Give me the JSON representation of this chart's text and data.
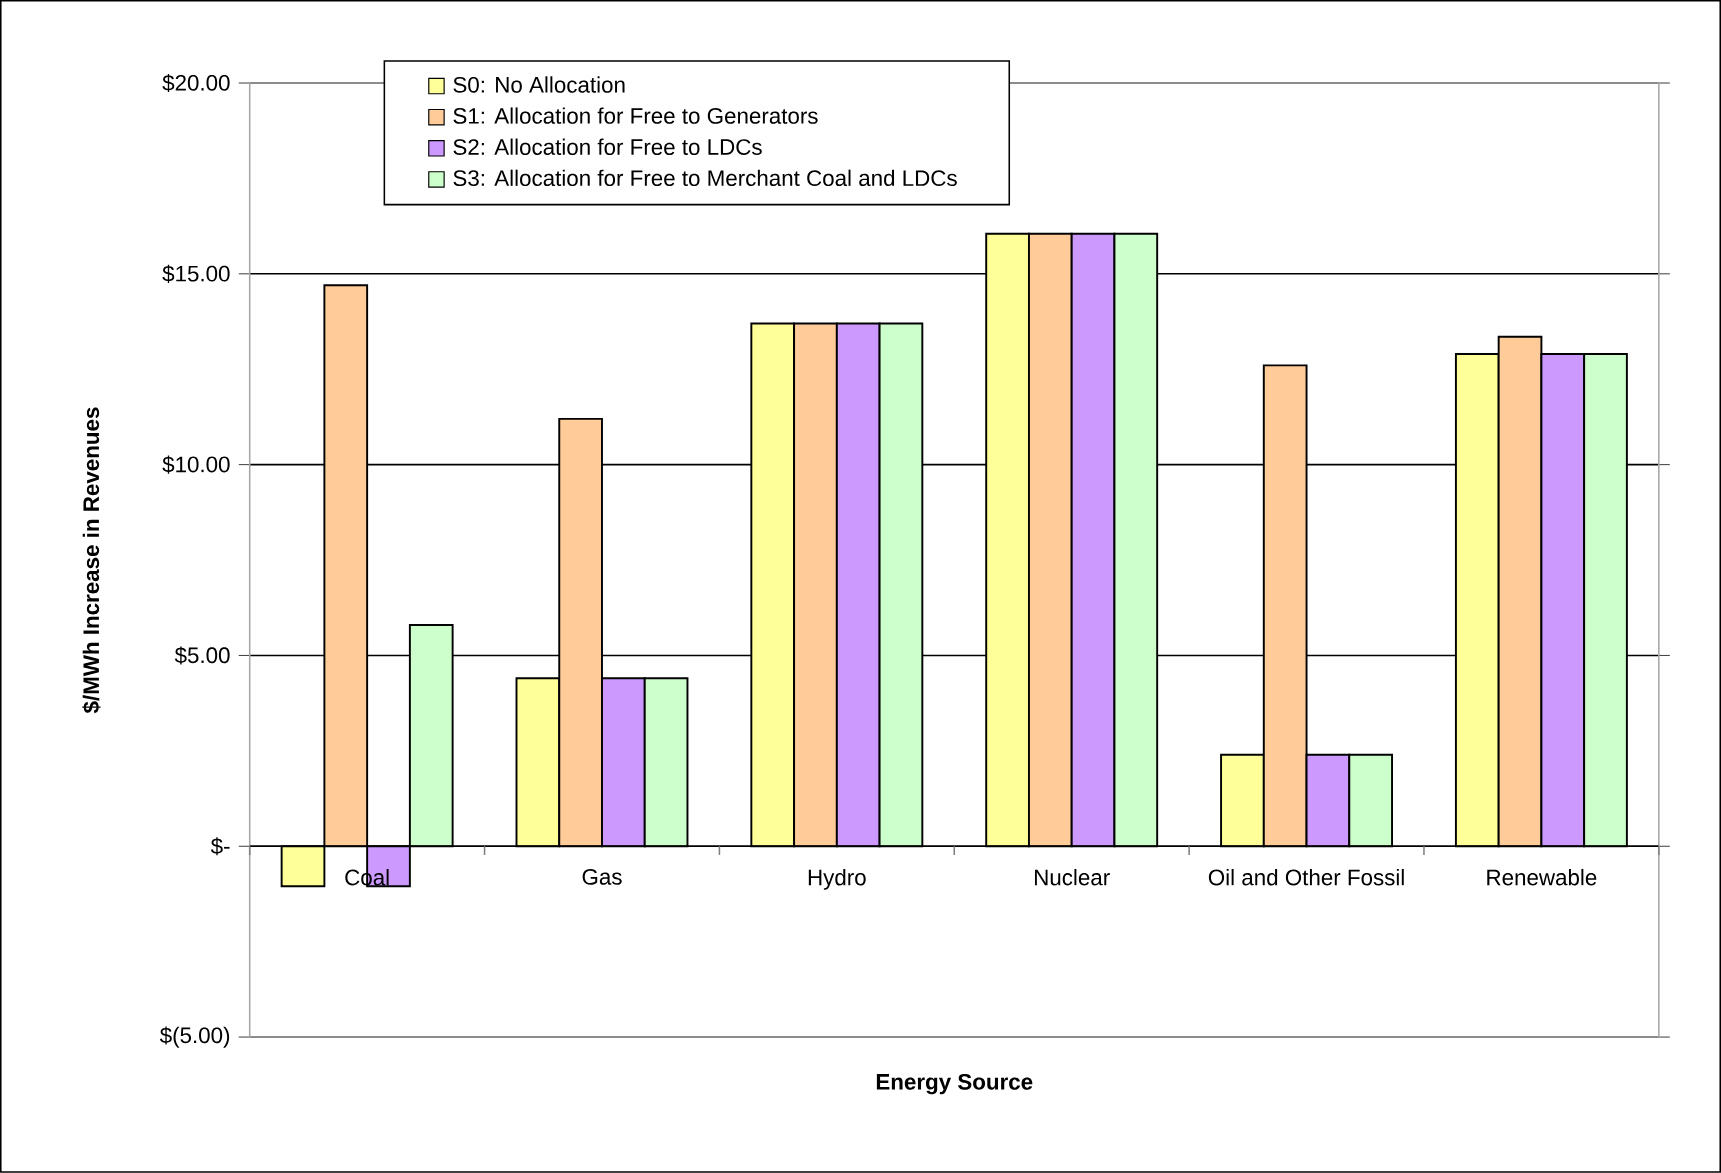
{
  "chart_data": {
    "type": "bar",
    "xlabel": "Energy Source",
    "ylabel": "$/MWh Increase in Revenues",
    "categories": [
      "Coal",
      "Gas",
      "Hydro",
      "Nuclear",
      "Oil and Other Fossil",
      "Renewable"
    ],
    "series": [
      {
        "name": "S0: No Allocation",
        "color": "#ffff99",
        "values": [
          -1.05,
          4.4,
          13.7,
          16.05,
          2.4,
          12.9
        ]
      },
      {
        "name": "S1: Allocation for Free to Generators",
        "color": "#ffcc99",
        "values": [
          14.7,
          11.2,
          13.7,
          16.05,
          12.6,
          13.35
        ]
      },
      {
        "name": "S2: Allocation for Free to LDCs",
        "color": "#cc99ff",
        "values": [
          -1.05,
          4.4,
          13.7,
          16.05,
          2.4,
          12.9
        ]
      },
      {
        "name": "S3: Allocation for Free to Merchant Coal and LDCs",
        "color": "#ccffcc",
        "values": [
          5.8,
          4.4,
          13.7,
          16.05,
          2.4,
          12.9
        ]
      }
    ],
    "ylim": [
      -5,
      20
    ],
    "yticks": [
      {
        "value": -5,
        "label": "$(5.00)"
      },
      {
        "value": 0,
        "label": "$-"
      },
      {
        "value": 5,
        "label": "$5.00"
      },
      {
        "value": 10,
        "label": "$10.00"
      },
      {
        "value": 15,
        "label": "$15.00"
      },
      {
        "value": 20,
        "label": "$20.00"
      }
    ],
    "grid": "y",
    "legend": "top"
  }
}
